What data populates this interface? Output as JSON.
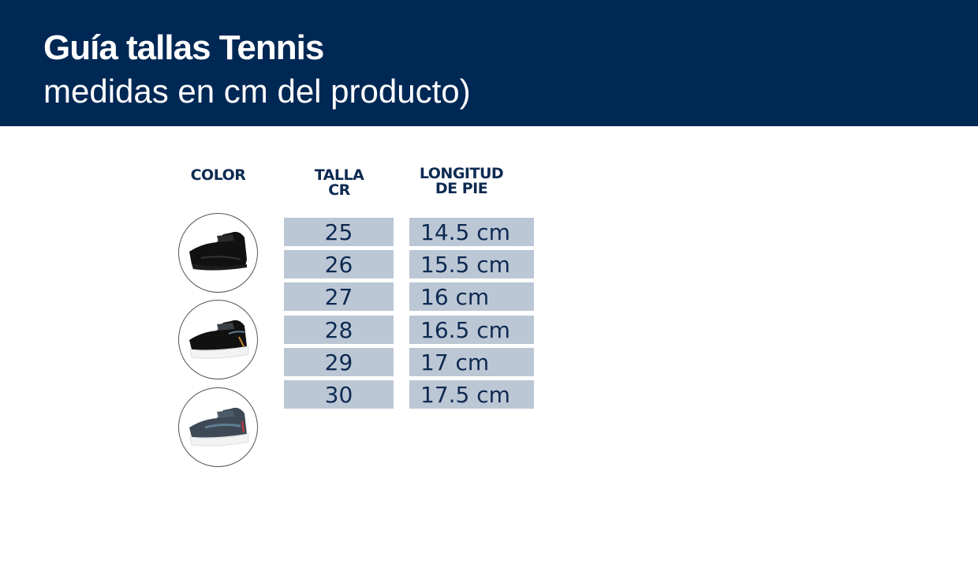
{
  "header": {
    "title": "Guía tallas Tennis",
    "subtitle": "medidas en cm del producto)"
  },
  "columns": {
    "color": "COLOR",
    "talla_line1": "TALLA",
    "talla_line2": "CR",
    "longitud_line1": "LONGITUD",
    "longitud_line2": "DE PIE"
  },
  "colors": {
    "header_bg": "#002855",
    "cell_bg": "#bcc7d5",
    "text": "#0d2a52"
  },
  "color_options": [
    {
      "icon": "black-sneaker-black-sole-image"
    },
    {
      "icon": "black-sneaker-white-sole-image"
    },
    {
      "icon": "gray-sneaker-white-sole-image"
    }
  ],
  "rows": [
    {
      "talla": "25",
      "longitud": "14.5 cm"
    },
    {
      "talla": "26",
      "longitud": "15.5 cm"
    },
    {
      "talla": "27",
      "longitud": "16 cm"
    },
    {
      "talla": "28",
      "longitud": "16.5 cm"
    },
    {
      "talla": "29",
      "longitud": "17 cm"
    },
    {
      "talla": "30",
      "longitud": "17.5 cm"
    }
  ]
}
